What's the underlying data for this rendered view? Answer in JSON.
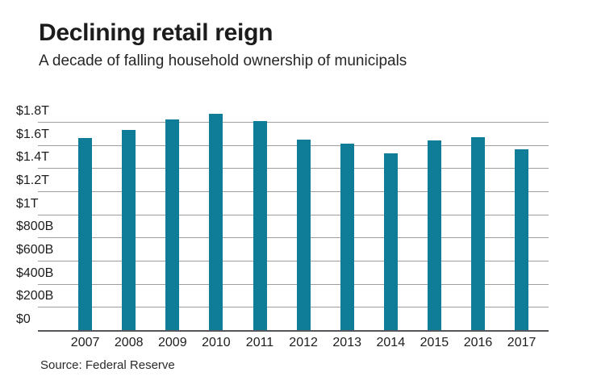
{
  "header": {
    "title": "Declining retail reign",
    "subtitle": "A decade of falling household ownership of municipals"
  },
  "source_note": "Source: Federal Reserve",
  "colors": {
    "bar": "#0f7d98",
    "gridline": "#9e9e9e",
    "axis_line": "#55565a",
    "text": "#1c1c1c"
  },
  "chart_data": {
    "type": "bar",
    "title": "Declining retail reign",
    "subtitle": "A decade of falling household ownership of municipals",
    "source": "Source: Federal Reserve",
    "unit": "USD",
    "categories": [
      "2007",
      "2008",
      "2009",
      "2010",
      "2011",
      "2012",
      "2013",
      "2014",
      "2015",
      "2016",
      "2017"
    ],
    "values_trillions": [
      1.66,
      1.73,
      1.82,
      1.87,
      1.81,
      1.65,
      1.61,
      1.53,
      1.64,
      1.67,
      1.56
    ],
    "xlabel": "",
    "ylabel": "",
    "ylim": [
      0,
      1.8
    ],
    "grid": "horizontal",
    "legend": "none",
    "y_ticks": [
      {
        "label": "$1.8T",
        "value": 1.8
      },
      {
        "label": "$1.6T",
        "value": 1.6
      },
      {
        "label": "$1.4T",
        "value": 1.4
      },
      {
        "label": "$1.2T",
        "value": 1.2
      },
      {
        "label": "$1T",
        "value": 1.0
      },
      {
        "label": "$800B",
        "value": 0.8
      },
      {
        "label": "$600B",
        "value": 0.6
      },
      {
        "label": "$400B",
        "value": 0.4
      },
      {
        "label": "$200B",
        "value": 0.2
      },
      {
        "label": "$0",
        "value": 0.0
      }
    ]
  }
}
